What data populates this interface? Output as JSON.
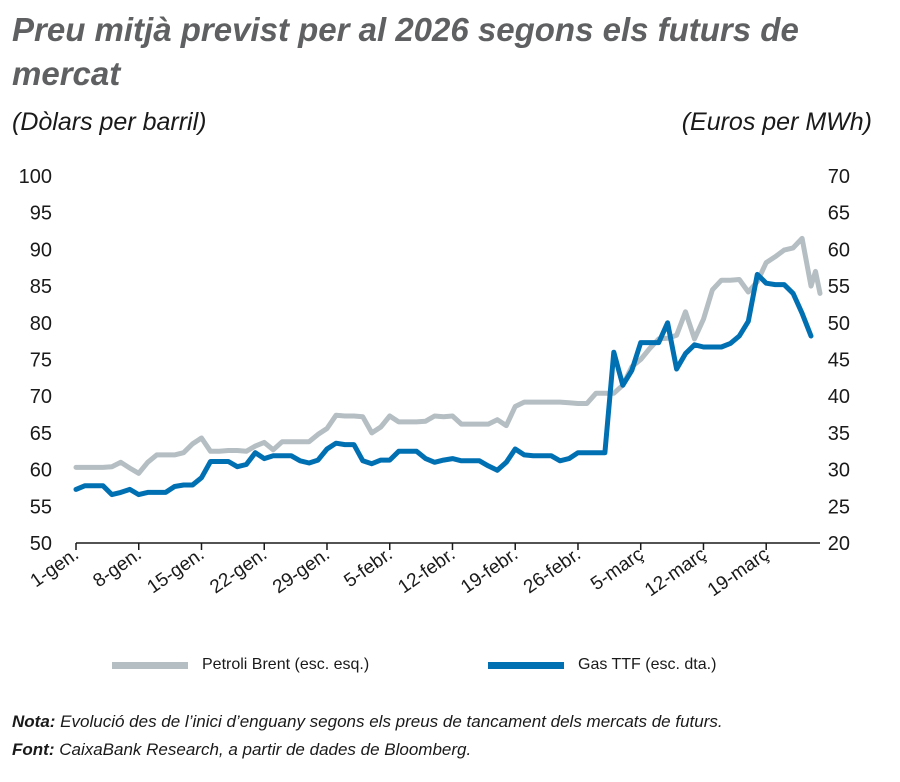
{
  "title": "Preu mitjà previst per al 2026 segons els futurs de mercat",
  "units": {
    "left": "(Dòlars per barril)",
    "right": "(Euros per MWh)"
  },
  "colors": {
    "brent": "#b5bec3",
    "ttf": "#0070b3",
    "axis": "#1a1a1a",
    "title": "#5f6062"
  },
  "note": {
    "label": "Nota:",
    "text": " Evolució des de l’inici d’enguany segons els preus de tancament dels mercats de futurs."
  },
  "source": {
    "label": "Font:",
    "text": " CaixaBank Research, a partir de dades de Bloomberg."
  },
  "chart_data": {
    "type": "line",
    "grid": false,
    "legend_position": "bottom",
    "x_ticks": [
      "1-gen.",
      "8-gen.",
      "15-gen.",
      "22-gen.",
      "29-gen.",
      "5-febr.",
      "12-febr.",
      "19-febr.",
      "26-febr.",
      "5-març",
      "12-març",
      "19-març"
    ],
    "x_tick_days": [
      1,
      8,
      15,
      22,
      29,
      36,
      43,
      50,
      57,
      64,
      71,
      78
    ],
    "x_range_days": [
      1,
      84
    ],
    "y_left": {
      "ticks": [
        50,
        55,
        60,
        65,
        70,
        75,
        80,
        85,
        90,
        95,
        100
      ],
      "range": [
        50,
        100
      ]
    },
    "y_right": {
      "ticks": [
        20,
        25,
        30,
        35,
        40,
        45,
        50,
        55,
        60,
        65,
        70
      ],
      "range": [
        20,
        70
      ]
    },
    "series": [
      {
        "name": "Petroli Brent (esc. esq.)",
        "axis": "left",
        "points": [
          [
            1,
            60.3
          ],
          [
            2,
            60.3
          ],
          [
            3,
            60.3
          ],
          [
            4,
            60.3
          ],
          [
            5,
            60.4
          ],
          [
            6,
            61.0
          ],
          [
            7,
            60.2
          ],
          [
            8,
            59.5
          ],
          [
            9,
            61.0
          ],
          [
            10,
            62.0
          ],
          [
            11,
            62.0
          ],
          [
            12,
            62.0
          ],
          [
            13,
            62.3
          ],
          [
            14,
            63.5
          ],
          [
            15,
            64.3
          ],
          [
            16,
            62.5
          ],
          [
            17,
            62.5
          ],
          [
            18,
            62.6
          ],
          [
            19,
            62.6
          ],
          [
            20,
            62.5
          ],
          [
            21,
            63.2
          ],
          [
            22,
            63.7
          ],
          [
            23,
            62.7
          ],
          [
            24,
            63.8
          ],
          [
            25,
            63.8
          ],
          [
            26,
            63.8
          ],
          [
            27,
            63.8
          ],
          [
            28,
            64.8
          ],
          [
            29,
            65.6
          ],
          [
            30,
            67.4
          ],
          [
            31,
            67.3
          ],
          [
            32,
            67.3
          ],
          [
            33,
            67.2
          ],
          [
            34,
            65.0
          ],
          [
            35,
            65.8
          ],
          [
            36,
            67.3
          ],
          [
            37,
            66.5
          ],
          [
            38,
            66.5
          ],
          [
            39,
            66.5
          ],
          [
            40,
            66.6
          ],
          [
            41,
            67.3
          ],
          [
            42,
            67.2
          ],
          [
            43,
            67.3
          ],
          [
            44,
            66.2
          ],
          [
            45,
            66.2
          ],
          [
            46,
            66.2
          ],
          [
            47,
            66.2
          ],
          [
            48,
            66.8
          ],
          [
            49,
            66.0
          ],
          [
            50,
            68.6
          ],
          [
            51,
            69.2
          ],
          [
            52,
            69.2
          ],
          [
            53,
            69.2
          ],
          [
            54,
            69.2
          ],
          [
            55,
            69.2
          ],
          [
            56,
            69.1
          ],
          [
            57,
            69.0
          ],
          [
            58,
            69.0
          ],
          [
            59,
            70.4
          ],
          [
            60,
            70.4
          ],
          [
            61,
            70.4
          ],
          [
            62,
            71.5
          ],
          [
            63,
            74.0
          ],
          [
            64,
            75.0
          ],
          [
            65,
            76.5
          ],
          [
            66,
            77.8
          ],
          [
            67,
            77.9
          ],
          [
            68,
            78.3
          ],
          [
            69,
            81.5
          ],
          [
            70,
            77.8
          ],
          [
            71,
            80.5
          ],
          [
            72,
            84.5
          ],
          [
            73,
            85.8
          ],
          [
            74,
            85.8
          ],
          [
            75,
            85.9
          ],
          [
            76,
            84.2
          ],
          [
            77,
            85.6
          ],
          [
            78,
            88.2
          ],
          [
            79,
            89.0
          ],
          [
            80,
            89.9
          ],
          [
            81,
            90.2
          ],
          [
            82,
            91.5
          ],
          [
            83,
            85.0
          ],
          [
            83.5,
            87.0
          ],
          [
            84,
            84.0
          ]
        ]
      },
      {
        "name": "Gas TTF (esc. dta.)",
        "axis": "right",
        "points": [
          [
            1,
            27.3
          ],
          [
            2,
            27.8
          ],
          [
            3,
            27.8
          ],
          [
            4,
            27.8
          ],
          [
            5,
            26.6
          ],
          [
            6,
            26.9
          ],
          [
            7,
            27.3
          ],
          [
            8,
            26.6
          ],
          [
            9,
            26.9
          ],
          [
            10,
            26.9
          ],
          [
            11,
            26.9
          ],
          [
            12,
            27.7
          ],
          [
            13,
            27.9
          ],
          [
            14,
            27.9
          ],
          [
            15,
            28.9
          ],
          [
            16,
            31.1
          ],
          [
            17,
            31.1
          ],
          [
            18,
            31.1
          ],
          [
            19,
            30.4
          ],
          [
            20,
            30.7
          ],
          [
            21,
            32.3
          ],
          [
            22,
            31.5
          ],
          [
            23,
            31.9
          ],
          [
            24,
            31.9
          ],
          [
            25,
            31.9
          ],
          [
            26,
            31.2
          ],
          [
            27,
            30.9
          ],
          [
            28,
            31.3
          ],
          [
            29,
            32.8
          ],
          [
            30,
            33.6
          ],
          [
            31,
            33.4
          ],
          [
            32,
            33.4
          ],
          [
            33,
            31.2
          ],
          [
            34,
            30.8
          ],
          [
            35,
            31.3
          ],
          [
            36,
            31.3
          ],
          [
            37,
            32.5
          ],
          [
            38,
            32.5
          ],
          [
            39,
            32.5
          ],
          [
            40,
            31.5
          ],
          [
            41,
            31.0
          ],
          [
            42,
            31.3
          ],
          [
            43,
            31.5
          ],
          [
            44,
            31.2
          ],
          [
            45,
            31.2
          ],
          [
            46,
            31.2
          ],
          [
            47,
            30.5
          ],
          [
            48,
            29.9
          ],
          [
            49,
            31.0
          ],
          [
            50,
            32.8
          ],
          [
            51,
            32.0
          ],
          [
            52,
            31.9
          ],
          [
            53,
            31.9
          ],
          [
            54,
            31.9
          ],
          [
            55,
            31.2
          ],
          [
            56,
            31.5
          ],
          [
            57,
            32.3
          ],
          [
            58,
            32.3
          ],
          [
            59,
            32.3
          ],
          [
            60,
            32.3
          ],
          [
            61,
            46.0
          ],
          [
            62,
            41.5
          ],
          [
            63,
            43.5
          ],
          [
            64,
            47.3
          ],
          [
            65,
            47.3
          ],
          [
            66,
            47.3
          ],
          [
            67,
            50.0
          ],
          [
            68,
            43.7
          ],
          [
            69,
            45.8
          ],
          [
            70,
            47.0
          ],
          [
            71,
            46.7
          ],
          [
            72,
            46.7
          ],
          [
            73,
            46.7
          ],
          [
            74,
            47.2
          ],
          [
            75,
            48.2
          ],
          [
            76,
            50.2
          ],
          [
            77,
            56.6
          ],
          [
            78,
            55.4
          ],
          [
            79,
            55.2
          ],
          [
            80,
            55.2
          ],
          [
            81,
            54.0
          ],
          [
            82,
            51.3
          ],
          [
            83,
            48.2
          ]
        ]
      }
    ]
  }
}
